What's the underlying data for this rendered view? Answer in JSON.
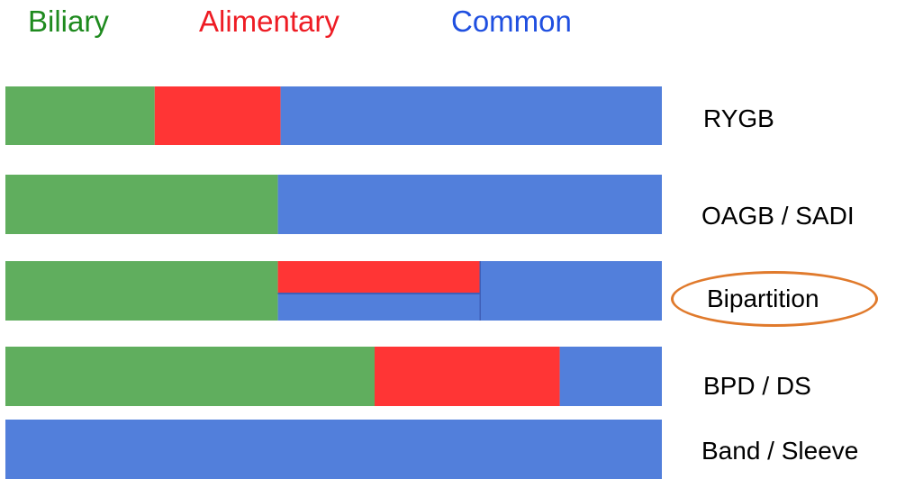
{
  "legend": {
    "biliary": {
      "label": "Biliary",
      "color": "#1e8a1e"
    },
    "alimentary": {
      "label": "Alimentary",
      "color": "#ee1c24"
    },
    "common": {
      "label": "Common",
      "color": "#1f4fe0"
    }
  },
  "colors": {
    "biliary_bar": "#60ae5e",
    "alimentary_bar": "#ff3535",
    "common_bar": "#527fdb",
    "highlight_oval": "#e07a2c"
  },
  "procedures": [
    {
      "label": "RYGB",
      "segments": [
        {
          "type": "biliary",
          "start": 0,
          "end": 0.2274
        },
        {
          "type": "alimentary",
          "start": 0.2274,
          "end": 0.4192
        },
        {
          "type": "common",
          "start": 0.4192,
          "end": 1
        }
      ]
    },
    {
      "label": "OAGB / SADI",
      "segments": [
        {
          "type": "biliary",
          "start": 0,
          "end": 0.4151
        },
        {
          "type": "common",
          "start": 0.4151,
          "end": 1
        }
      ]
    },
    {
      "label": "Bipartition",
      "highlighted": true,
      "segments": [
        {
          "type": "biliary",
          "start": 0,
          "end": 0.4151
        },
        {
          "type": "alimentary",
          "start": 0.4151,
          "end": 0.7236,
          "lane": "top"
        },
        {
          "type": "common",
          "start": 0.4151,
          "end": 0.7236,
          "lane": "bottom"
        },
        {
          "type": "common",
          "start": 0.7236,
          "end": 1
        }
      ]
    },
    {
      "label": "BPD / DS",
      "segments": [
        {
          "type": "biliary",
          "start": 0,
          "end": 0.5624
        },
        {
          "type": "alimentary",
          "start": 0.5624,
          "end": 0.8445
        },
        {
          "type": "common",
          "start": 0.8445,
          "end": 1
        }
      ]
    },
    {
      "label": "Band / Sleeve",
      "segments": [
        {
          "type": "common",
          "start": 0,
          "end": 1
        }
      ]
    }
  ]
}
